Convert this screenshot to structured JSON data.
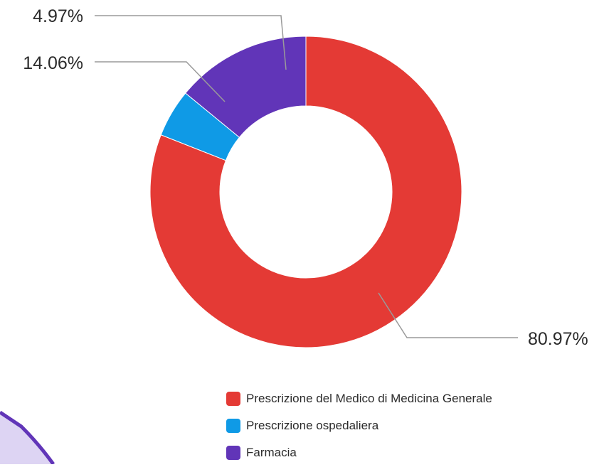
{
  "chart_data": {
    "type": "pie",
    "donut": true,
    "categories": [
      "Prescrizione del Medico di Medicina Generale",
      "Prescrizione ospedaliera",
      "Farmacia"
    ],
    "values": [
      80.97,
      4.97,
      14.06
    ],
    "value_labels": [
      "80.97%",
      "4.97%",
      "14.06%"
    ],
    "colors": [
      "#e43a35",
      "#0f9ae6",
      "#6135b8"
    ],
    "legend_position": "bottom-right"
  }
}
